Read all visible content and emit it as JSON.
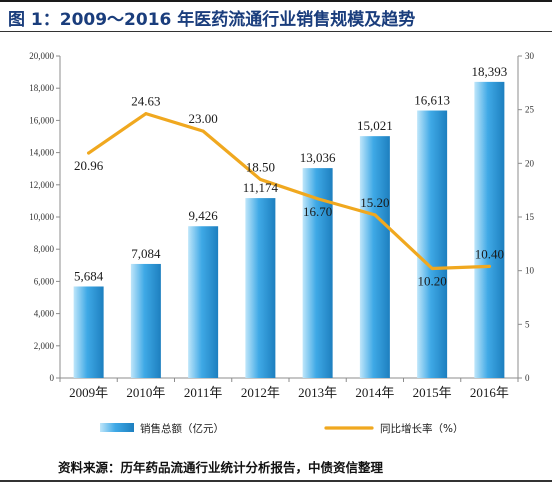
{
  "title": "图 1：2009～2016 年医药流通行业销售规模及趋势",
  "source": "资料来源：历年药品流通行业统计分析报告，中债资信整理",
  "colors": {
    "bar": "#3fa9e6",
    "bar_light": "#bfe6fa",
    "bar_dark": "#1d7fbf",
    "line": "#f0a81f"
  },
  "chart_data": {
    "type": "bar",
    "categories": [
      "2009年",
      "2010年",
      "2011年",
      "2012年",
      "2013年",
      "2014年",
      "2015年",
      "2016年"
    ],
    "series": [
      {
        "name": "销售总额（亿元）",
        "type": "bar",
        "axis": "left",
        "values": [
          5684,
          7084,
          9426,
          11174,
          13036,
          15021,
          16613,
          18393
        ],
        "labels": [
          "5,684",
          "7,084",
          "9,426",
          "11,174",
          "13,036",
          "15,021",
          "16,613",
          "18,393"
        ]
      },
      {
        "name": "同比增长率（%）",
        "type": "line",
        "axis": "right",
        "values": [
          20.96,
          24.63,
          23.0,
          18.5,
          16.7,
          15.2,
          10.2,
          10.4
        ],
        "labels": [
          "20.96",
          "24.63",
          "23.00",
          "18.50",
          "16.70",
          "15.20",
          "10.20",
          "10.40"
        ]
      }
    ],
    "y_left": {
      "lim": [
        0,
        20000
      ],
      "ticks": [
        0,
        2000,
        4000,
        6000,
        8000,
        10000,
        12000,
        14000,
        16000,
        18000,
        20000
      ],
      "tick_labels": [
        "0",
        "2,000",
        "4,000",
        "6,000",
        "8,000",
        "10,000",
        "12,000",
        "14,000",
        "16,000",
        "18,000",
        "20,000"
      ]
    },
    "y_right": {
      "lim": [
        0,
        30
      ],
      "ticks": [
        0,
        5,
        10,
        15,
        20,
        25,
        30
      ],
      "tick_labels": [
        "0",
        "5",
        "10",
        "15",
        "20",
        "25",
        "30"
      ]
    },
    "grid": false,
    "legend_position": "bottom"
  }
}
